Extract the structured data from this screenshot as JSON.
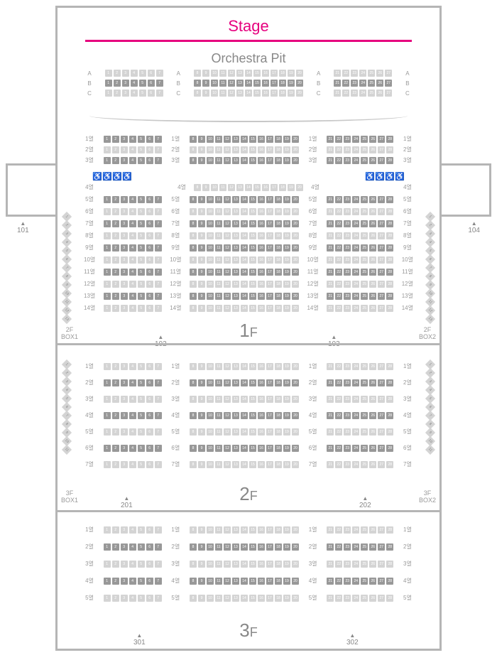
{
  "labels": {
    "stage": "Stage",
    "orchestra": "Orchestra Pit",
    "floor1": "1F",
    "floor2": "2F",
    "floor3": "3F",
    "box_2f_l": "2F\nBOX1",
    "box_2f_r": "2F\nBOX2",
    "box_3f_l": "3F\nBOX1",
    "box_3f_r": "3F\nBOX2"
  },
  "exits": {
    "e101": "101",
    "e102": "102",
    "e103": "103",
    "e104": "104",
    "e201": "201",
    "e202": "202",
    "e301": "301",
    "e302": "302"
  },
  "colors": {
    "accent": "#e6007e",
    "border": "#b5b5b5",
    "seat_light": "#d4d4d4",
    "seat_dark": "#989898",
    "text": "#888888"
  },
  "orchestra_rows": [
    "A",
    "B",
    "C"
  ],
  "floor1_block1_rows": [
    1,
    2,
    3
  ],
  "floor1_block2_rows": [
    4,
    5,
    6,
    7,
    8,
    9,
    10,
    11,
    12,
    13,
    14
  ],
  "floor2_rows": [
    1,
    2,
    3,
    4,
    5,
    6,
    7
  ],
  "floor3_rows": [
    1,
    2,
    3,
    4,
    5
  ],
  "seat_layout": {
    "left_seats": [
      1,
      2,
      3,
      4,
      5,
      6,
      7
    ],
    "center_seats": [
      8,
      9,
      10,
      11,
      12,
      13,
      14,
      15,
      16,
      17,
      18,
      19,
      20
    ],
    "right_seats": [
      21,
      22,
      23,
      24,
      25,
      26,
      27,
      28
    ]
  },
  "box_seats_2f": [
    1,
    2,
    3,
    4,
    5,
    6,
    7,
    8,
    9,
    10,
    11,
    12,
    13
  ],
  "box_seats_3f": [
    1,
    2,
    3,
    4,
    5,
    6,
    7,
    8,
    9,
    10,
    11
  ]
}
